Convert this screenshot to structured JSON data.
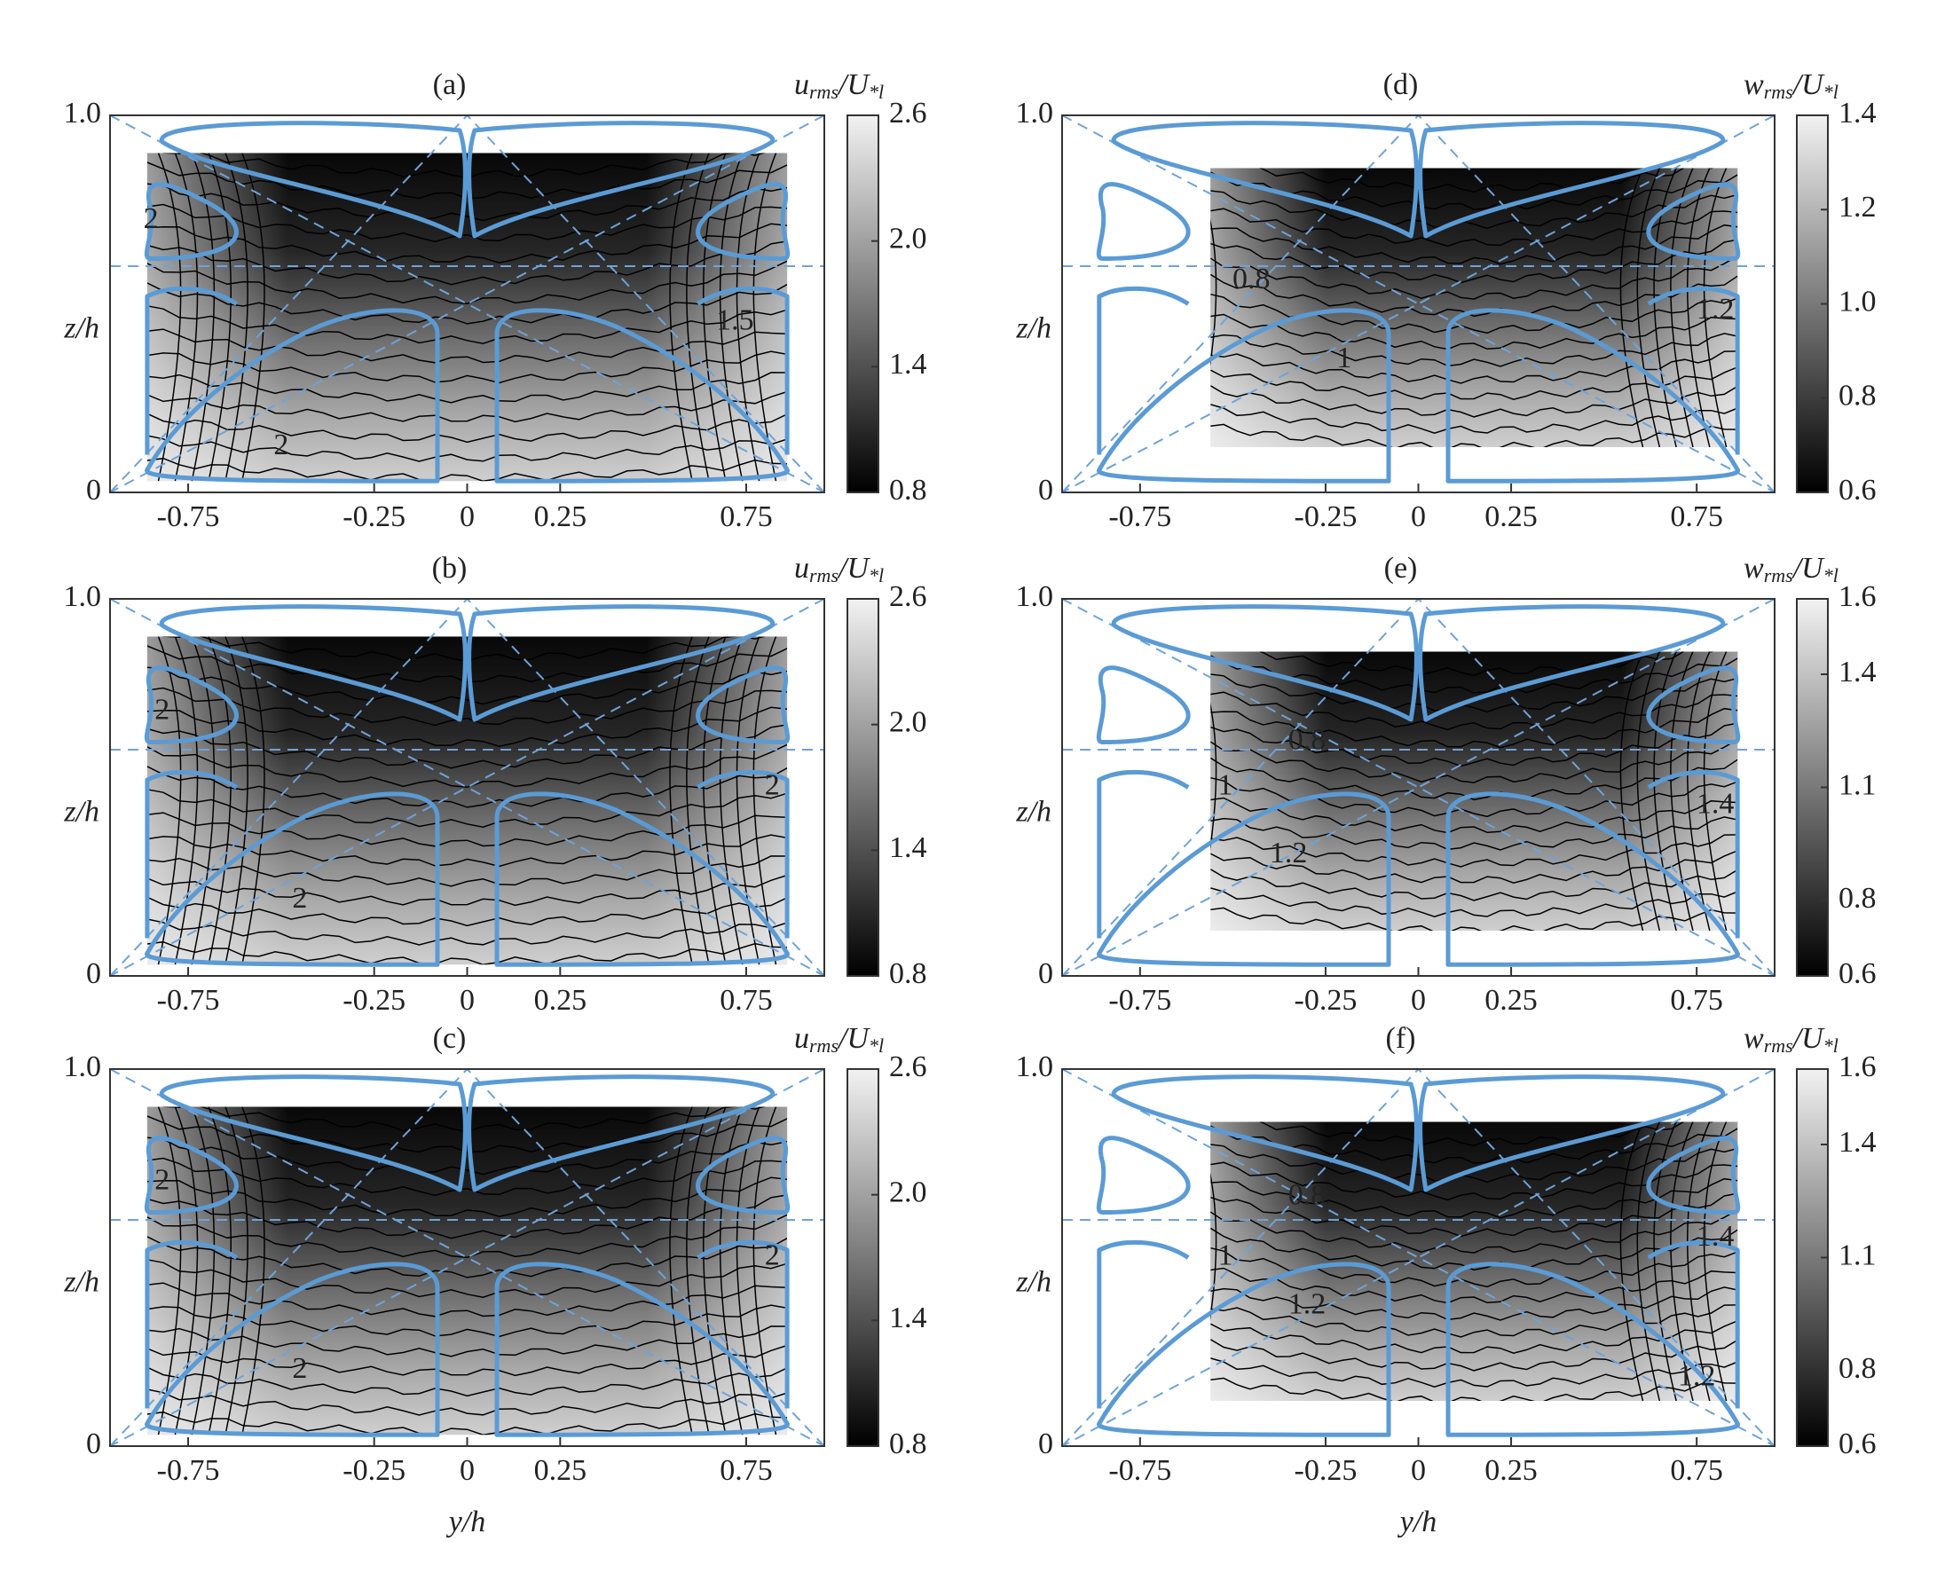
{
  "chart_data": [
    {
      "type": "contour",
      "title": "(a)",
      "ylabel": "z/h",
      "xlim": [
        -0.96,
        0.96
      ],
      "xticks": [
        -0.75,
        -0.25,
        0,
        0.25,
        0.75
      ],
      "ylim": [
        0,
        1
      ],
      "yticks": [
        0,
        {
          "value": 1,
          "label": "1.0"
        }
      ],
      "colorbar_label": {
        "symbol": "u",
        "symbol_sub": "rms",
        "over": "/U",
        "over_sub": "*l"
      },
      "clim": [
        0.8,
        2.6
      ],
      "cticks": [
        0.8,
        1.4,
        {
          "value": 2,
          "label": "2.0"
        },
        2.6
      ],
      "contour_labels": [
        2,
        2,
        1.5
      ]
    },
    {
      "type": "contour",
      "title": "(b)",
      "ylabel": "z/h",
      "xlim": [
        -0.96,
        0.96
      ],
      "xticks": [
        -0.75,
        -0.25,
        0,
        0.25,
        0.75
      ],
      "ylim": [
        0,
        1
      ],
      "yticks": [
        0,
        {
          "value": 1,
          "label": "1.0"
        }
      ],
      "colorbar_label": {
        "symbol": "u",
        "symbol_sub": "rms",
        "over": "/U",
        "over_sub": "*l"
      },
      "clim": [
        0.8,
        2.6
      ],
      "cticks": [
        0.8,
        1.4,
        {
          "value": 2,
          "label": "2.0"
        },
        2.6
      ],
      "contour_labels": [
        2,
        2,
        2
      ]
    },
    {
      "type": "contour",
      "title": "(c)",
      "ylabel": "z/h",
      "xlabel": "y/h",
      "xlim": [
        -0.96,
        0.96
      ],
      "xticks": [
        -0.75,
        -0.25,
        0,
        0.25,
        0.75
      ],
      "ylim": [
        0,
        1
      ],
      "yticks": [
        0,
        {
          "value": 1,
          "label": "1.0"
        }
      ],
      "colorbar_label": {
        "symbol": "u",
        "symbol_sub": "rms",
        "over": "/U",
        "over_sub": "*l"
      },
      "clim": [
        0.8,
        2.6
      ],
      "cticks": [
        0.8,
        1.4,
        {
          "value": 2,
          "label": "2.0"
        },
        2.6
      ],
      "contour_labels": [
        2,
        2,
        2
      ]
    },
    {
      "type": "contour",
      "title": "(d)",
      "ylabel": "z/h",
      "xlim": [
        -0.96,
        0.96
      ],
      "xticks": [
        -0.75,
        -0.25,
        0,
        0.25,
        0.75
      ],
      "ylim": [
        0,
        1
      ],
      "yticks": [
        0,
        {
          "value": 1,
          "label": "1.0"
        }
      ],
      "colorbar_label": {
        "symbol": "w",
        "symbol_sub": "rms",
        "over": "/U",
        "over_sub": "*l"
      },
      "clim": [
        0.6,
        1.4
      ],
      "cticks": [
        0.6,
        0.8,
        {
          "value": 1,
          "label": "1.0"
        },
        1.2,
        1.4
      ],
      "contour_labels": [
        0.8,
        1,
        1.2
      ]
    },
    {
      "type": "contour",
      "title": "(e)",
      "ylabel": "z/h",
      "xlim": [
        -0.96,
        0.96
      ],
      "xticks": [
        -0.75,
        -0.25,
        0,
        0.25,
        0.75
      ],
      "ylim": [
        0,
        1
      ],
      "yticks": [
        0,
        {
          "value": 1,
          "label": "1.0"
        }
      ],
      "colorbar_label": {
        "symbol": "w",
        "symbol_sub": "rms",
        "over": "/U",
        "over_sub": "*l"
      },
      "clim": [
        0.6,
        1.6
      ],
      "cticks": [
        0.6,
        0.8,
        1.1,
        1.4,
        1.6
      ],
      "contour_labels": [
        0.8,
        1,
        1.2,
        1.4
      ]
    },
    {
      "type": "contour",
      "title": "(f)",
      "ylabel": "z/h",
      "xlabel": "y/h",
      "xlim": [
        -0.96,
        0.96
      ],
      "xticks": [
        -0.75,
        -0.25,
        0,
        0.25,
        0.75
      ],
      "ylim": [
        0,
        1
      ],
      "yticks": [
        0,
        {
          "value": 1,
          "label": "1.0"
        }
      ],
      "colorbar_label": {
        "symbol": "w",
        "symbol_sub": "rms",
        "over": "/U",
        "over_sub": "*l"
      },
      "clim": [
        0.6,
        1.6
      ],
      "cticks": [
        0.6,
        0.8,
        1.1,
        1.4,
        1.6
      ],
      "contour_labels": [
        0.8,
        1,
        1.2,
        1.4,
        1.2
      ]
    }
  ]
}
